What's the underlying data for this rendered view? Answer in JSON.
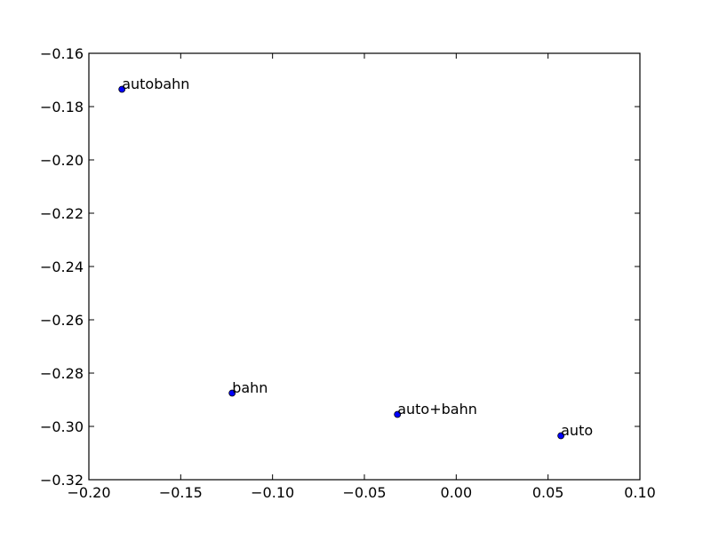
{
  "chart_data": {
    "type": "scatter",
    "title": "",
    "xlabel": "",
    "ylabel": "",
    "xlim": [
      -0.2,
      0.1
    ],
    "ylim": [
      -0.32,
      -0.16
    ],
    "xticks": [
      -0.2,
      -0.15,
      -0.1,
      -0.05,
      0.0,
      0.05,
      0.1
    ],
    "yticks": [
      -0.32,
      -0.3,
      -0.28,
      -0.26,
      -0.24,
      -0.22,
      -0.2,
      -0.18,
      -0.16
    ],
    "xtick_labels": [
      "−0.20",
      "−0.15",
      "−0.10",
      "−0.05",
      "0.00",
      "0.05",
      "0.10"
    ],
    "ytick_labels": [
      "−0.32",
      "−0.30",
      "−0.28",
      "−0.26",
      "−0.24",
      "−0.22",
      "−0.20",
      "−0.18",
      "−0.16"
    ],
    "grid": false,
    "marker_color": "#0000ff",
    "points": [
      {
        "label": "autobahn",
        "x": -0.182,
        "y": -0.1735
      },
      {
        "label": "bahn",
        "x": -0.122,
        "y": -0.2875
      },
      {
        "label": "auto+bahn",
        "x": -0.032,
        "y": -0.2955
      },
      {
        "label": "auto",
        "x": 0.057,
        "y": -0.3035
      }
    ]
  }
}
